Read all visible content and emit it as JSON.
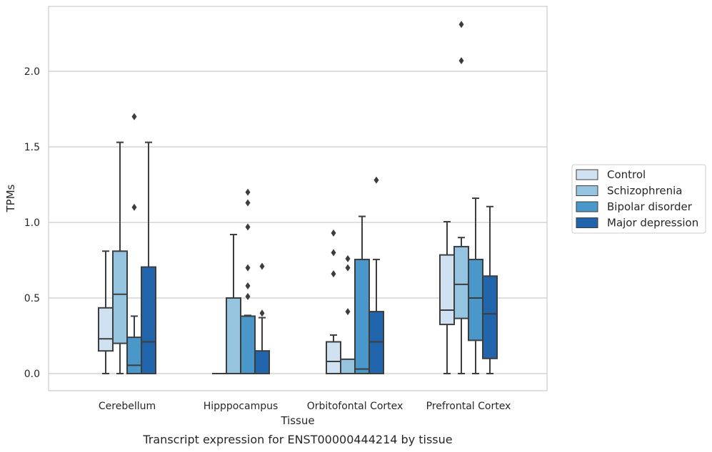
{
  "caption": "Transcript expression for ENST00000444214 by tissue",
  "chart_data": {
    "type": "box",
    "title": "",
    "xlabel": "Tissue",
    "ylabel": "TPMs",
    "ylim": [
      -0.11,
      2.43
    ],
    "yticks": [
      0.0,
      0.5,
      1.0,
      1.5,
      2.0
    ],
    "ytick_labels": [
      "0.0",
      "0.5",
      "1.0",
      "1.5",
      "2.0"
    ],
    "grid": "horizontal",
    "legend_position": "right",
    "categories": [
      "Cerebellum",
      "Hipppocampus",
      "Orbitofontal Cortex",
      "Prefrontal Cortex"
    ],
    "series": [
      {
        "name": "Control",
        "color": "#d0e1f2",
        "boxes": [
          {
            "whislo": 0.0,
            "q1": 0.15,
            "med": 0.23,
            "q3": 0.435,
            "whishi": 0.81,
            "fliers": []
          },
          {
            "whislo": 0.0,
            "q1": 0.0,
            "med": 0.0,
            "q3": 0.0,
            "whishi": 0.0,
            "fliers": []
          },
          {
            "whislo": 0.0,
            "q1": 0.0,
            "med": 0.08,
            "q3": 0.21,
            "whishi": 0.255,
            "fliers": [
              0.66,
              0.8,
              0.93
            ]
          },
          {
            "whislo": 0.0,
            "q1": 0.325,
            "med": 0.42,
            "q3": 0.785,
            "whishi": 1.005,
            "fliers": []
          }
        ]
      },
      {
        "name": "Schizophrenia",
        "color": "#94c4df",
        "boxes": [
          {
            "whislo": 0.0,
            "q1": 0.2,
            "med": 0.525,
            "q3": 0.81,
            "whishi": 1.53,
            "fliers": []
          },
          {
            "whislo": 0.0,
            "q1": 0.0,
            "med": 0.0,
            "q3": 0.5,
            "whishi": 0.92,
            "fliers": []
          },
          {
            "whislo": 0.0,
            "q1": 0.0,
            "med": 0.0,
            "q3": 0.095,
            "whishi": 0.095,
            "fliers": [
              0.41,
              0.7,
              0.76
            ]
          },
          {
            "whislo": 0.0,
            "q1": 0.365,
            "med": 0.59,
            "q3": 0.84,
            "whishi": 0.9,
            "fliers": [
              2.07,
              2.31
            ]
          }
        ]
      },
      {
        "name": "Bipolar disorder",
        "color": "#4a98c9",
        "boxes": [
          {
            "whislo": 0.0,
            "q1": 0.0,
            "med": 0.055,
            "q3": 0.24,
            "whishi": 0.38,
            "fliers": [
              1.1,
              1.7
            ]
          },
          {
            "whislo": 0.0,
            "q1": 0.0,
            "med": 0.0,
            "q3": 0.38,
            "whishi": 0.385,
            "fliers": [
              0.51,
              0.58,
              0.7,
              0.97,
              1.13,
              1.2
            ]
          },
          {
            "whislo": 0.0,
            "q1": 0.0,
            "med": 0.03,
            "q3": 0.755,
            "whishi": 1.04,
            "fliers": []
          },
          {
            "whislo": 0.0,
            "q1": 0.22,
            "med": 0.5,
            "q3": 0.755,
            "whishi": 1.16,
            "fliers": []
          }
        ]
      },
      {
        "name": "Major depression",
        "color": "#2166ac",
        "boxes": [
          {
            "whislo": 0.0,
            "q1": 0.0,
            "med": 0.21,
            "q3": 0.705,
            "whishi": 1.53,
            "fliers": []
          },
          {
            "whislo": 0.0,
            "q1": 0.0,
            "med": 0.0,
            "q3": 0.15,
            "whishi": 0.37,
            "fliers": [
              0.4,
              0.71
            ]
          },
          {
            "whislo": 0.0,
            "q1": 0.0,
            "med": 0.21,
            "q3": 0.41,
            "whishi": 0.755,
            "fliers": [
              1.28
            ]
          },
          {
            "whislo": 0.0,
            "q1": 0.1,
            "med": 0.395,
            "q3": 0.645,
            "whishi": 1.105,
            "fliers": []
          }
        ]
      }
    ]
  }
}
